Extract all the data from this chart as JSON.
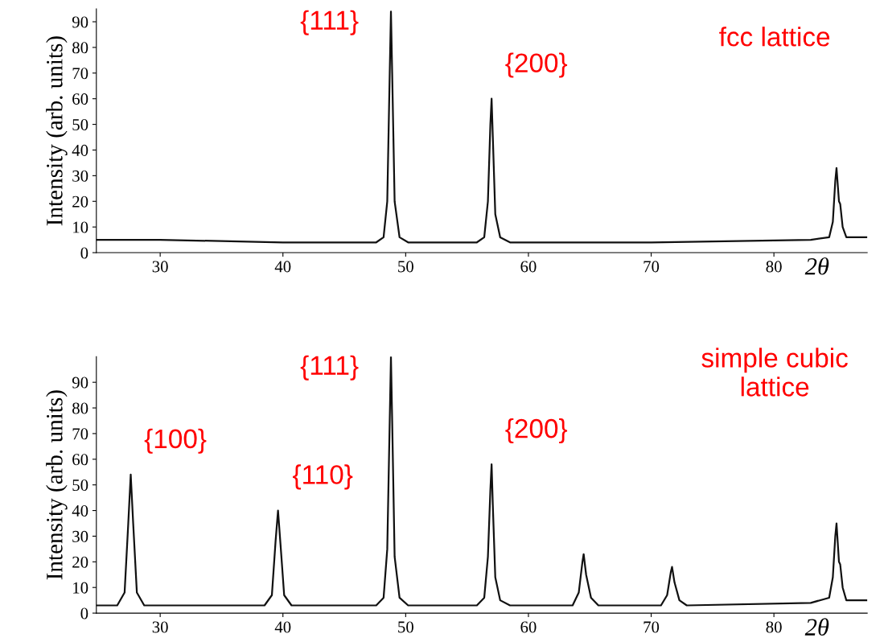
{
  "chart_data": [
    {
      "type": "line",
      "title": "fcc lattice",
      "xlabel": "2θ",
      "ylabel": "Intensity (arb. units)",
      "xlim": [
        24.8,
        87.6
      ],
      "xticks": [
        30,
        40,
        50,
        60,
        70,
        80
      ],
      "ylim": [
        0,
        95
      ],
      "yticks": [
        0,
        10,
        20,
        30,
        40,
        50,
        60,
        70,
        80,
        90
      ],
      "grid": false,
      "legend": false,
      "marker": "none",
      "line_style": "solid",
      "series": [
        {
          "color": "#111111",
          "x": [
            24.8,
            30,
            40,
            47.6,
            48.2,
            48.5,
            48.7,
            48.8,
            48.9,
            49.1,
            49.5,
            50.2,
            55.8,
            56.4,
            56.7,
            56.9,
            57.0,
            57.1,
            57.3,
            57.7,
            58.5,
            70,
            83,
            84.5,
            84.8,
            85.0,
            85.1,
            85.3,
            85.4,
            85.6,
            85.9,
            87.6
          ],
          "values": [
            5,
            5,
            4,
            4,
            6,
            20,
            70,
            94,
            70,
            20,
            6,
            4,
            4,
            6,
            20,
            50,
            60,
            45,
            15,
            6,
            4,
            4,
            5,
            6,
            12,
            28,
            33,
            20,
            19,
            10,
            6,
            6
          ]
        }
      ],
      "annotations": [
        {
          "text": "{111}",
          "x": 48.8,
          "y": 94
        },
        {
          "text": "{200}",
          "x": 57.0,
          "y": 60
        }
      ]
    },
    {
      "type": "line",
      "title": "simple cubic\nlattice",
      "xlabel": "2θ",
      "ylabel": "Intensity (arb. units)",
      "xlim": [
        24.8,
        87.6
      ],
      "xticks": [
        30,
        40,
        50,
        60,
        70,
        80
      ],
      "ylim": [
        0,
        100
      ],
      "yticks": [
        0,
        10,
        20,
        30,
        40,
        50,
        60,
        70,
        80,
        90
      ],
      "grid": false,
      "legend": false,
      "marker": "none",
      "line_style": "solid",
      "series": [
        {
          "color": "#111111",
          "x": [
            24.8,
            26.5,
            27.1,
            27.4,
            27.6,
            27.8,
            28.1,
            28.7,
            38.5,
            39.1,
            39.4,
            39.6,
            39.8,
            40.1,
            40.7,
            47.6,
            48.2,
            48.5,
            48.7,
            48.8,
            48.9,
            49.1,
            49.5,
            50.2,
            55.8,
            56.4,
            56.7,
            56.9,
            57.0,
            57.1,
            57.3,
            57.7,
            58.5,
            63.6,
            64.1,
            64.4,
            64.5,
            64.7,
            65.1,
            65.7,
            70.8,
            71.3,
            71.6,
            71.7,
            71.9,
            72.3,
            72.9,
            83,
            84.5,
            84.8,
            85.0,
            85.1,
            85.3,
            85.4,
            85.6,
            85.9,
            87.6
          ],
          "values": [
            3,
            3,
            8,
            35,
            54,
            35,
            8,
            3,
            3,
            7,
            28,
            40,
            27,
            7,
            3,
            3,
            6,
            25,
            75,
            100,
            75,
            22,
            6,
            3,
            3,
            6,
            22,
            48,
            58,
            42,
            14,
            5,
            3,
            3,
            8,
            20,
            23,
            15,
            6,
            3,
            3,
            7,
            16,
            18,
            12,
            5,
            3,
            4,
            6,
            14,
            30,
            35,
            20,
            19,
            10,
            5,
            5
          ]
        }
      ],
      "annotations": [
        {
          "text": "{100}",
          "x": 27.6,
          "y": 54
        },
        {
          "text": "{110}",
          "x": 39.6,
          "y": 40
        },
        {
          "text": "{111}",
          "x": 48.8,
          "y": 100
        },
        {
          "text": "{200}",
          "x": 57.0,
          "y": 58
        }
      ]
    }
  ]
}
